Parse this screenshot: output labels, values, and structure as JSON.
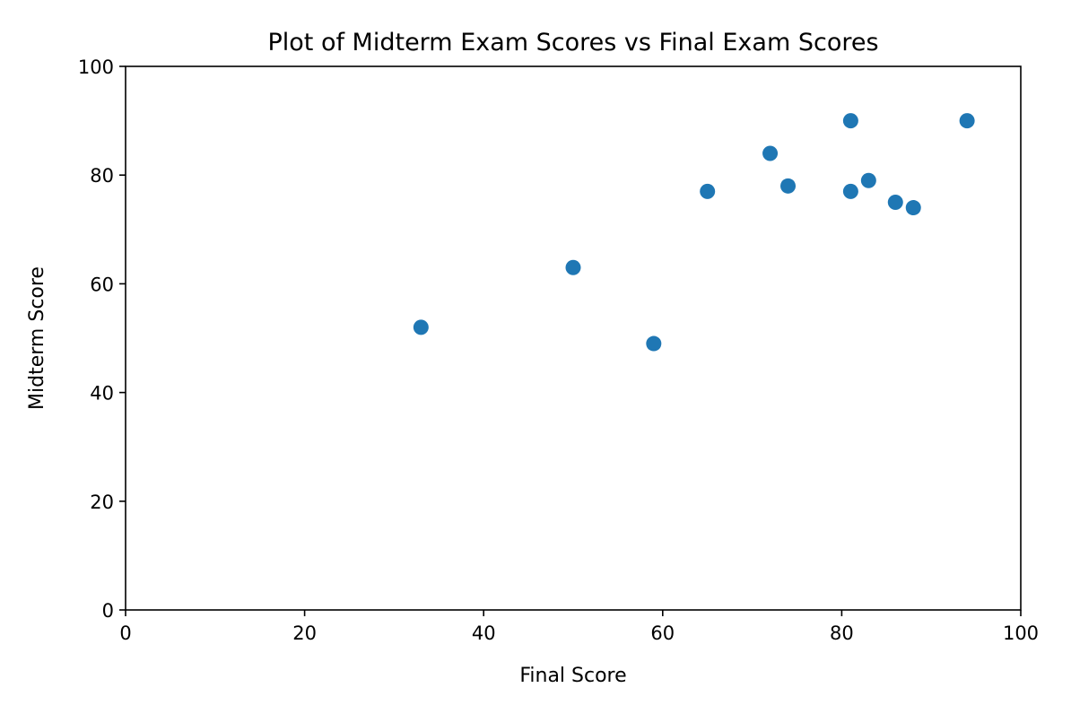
{
  "chart_data": {
    "type": "scatter",
    "title": "Plot of Midterm Exam Scores vs Final Exam Scores",
    "xlabel": "Final Score",
    "ylabel": "Midterm Score",
    "xlim": [
      0,
      100
    ],
    "ylim": [
      0,
      100
    ],
    "xticks": [
      0,
      20,
      40,
      60,
      80,
      100
    ],
    "yticks": [
      0,
      20,
      40,
      60,
      80,
      100
    ],
    "grid": false,
    "legend": "none",
    "marker_color": "#1f77b4",
    "series": [
      {
        "points": [
          {
            "x": 33,
            "y": 52
          },
          {
            "x": 50,
            "y": 63
          },
          {
            "x": 59,
            "y": 49
          },
          {
            "x": 65,
            "y": 77
          },
          {
            "x": 72,
            "y": 84
          },
          {
            "x": 74,
            "y": 78
          },
          {
            "x": 81,
            "y": 90
          },
          {
            "x": 81,
            "y": 77
          },
          {
            "x": 83,
            "y": 79
          },
          {
            "x": 86,
            "y": 75
          },
          {
            "x": 88,
            "y": 74
          },
          {
            "x": 94,
            "y": 90
          }
        ]
      }
    ]
  }
}
